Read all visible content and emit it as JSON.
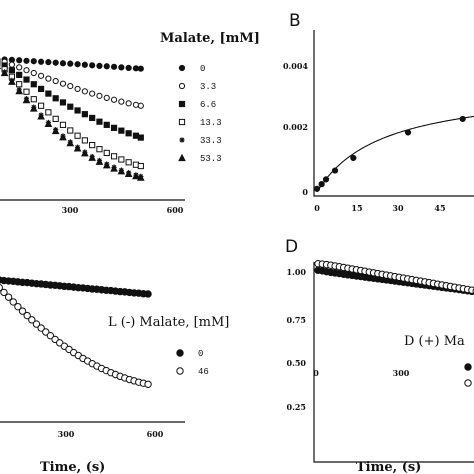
{
  "chart_data": [
    {
      "panel": "",
      "type": "scatter",
      "legend_title": "Malate, [mM]",
      "legend_position": "right",
      "x_ticks": [
        "300",
        "600"
      ],
      "xlim": [
        -100,
        640
      ],
      "ylim": [
        0.3,
        1.08
      ],
      "series": [
        {
          "name": "0",
          "marker": "filled-circle",
          "x": [
            -100,
            -70,
            -40,
            -10,
            20,
            50,
            80,
            110,
            140,
            170,
            200,
            230,
            260,
            290,
            320,
            350,
            380,
            410,
            440,
            470,
            500,
            520
          ],
          "y": [
            1.0,
            0.999,
            0.997,
            0.995,
            0.993,
            0.99,
            0.988,
            0.985,
            0.983,
            0.98,
            0.977,
            0.975,
            0.972,
            0.969,
            0.966,
            0.963,
            0.961,
            0.958,
            0.955,
            0.952,
            0.95,
            0.948
          ]
        },
        {
          "name": "3.3",
          "marker": "open-circle",
          "x": [
            -100,
            -70,
            -40,
            -10,
            20,
            50,
            80,
            110,
            140,
            170,
            200,
            230,
            260,
            290,
            320,
            350,
            380,
            410,
            440,
            470,
            500,
            520
          ],
          "y": [
            1.0,
            0.995,
            0.985,
            0.97,
            0.955,
            0.94,
            0.925,
            0.91,
            0.895,
            0.882,
            0.868,
            0.855,
            0.84,
            0.827,
            0.815,
            0.803,
            0.792,
            0.782,
            0.772,
            0.763,
            0.755,
            0.75
          ]
        },
        {
          "name": "6.6",
          "marker": "filled-square",
          "x": [
            -100,
            -70,
            -40,
            -10,
            20,
            50,
            80,
            110,
            140,
            170,
            200,
            230,
            260,
            290,
            320,
            350,
            380,
            410,
            440,
            470,
            500,
            520
          ],
          "y": [
            0.995,
            0.985,
            0.965,
            0.94,
            0.915,
            0.89,
            0.865,
            0.84,
            0.815,
            0.79,
            0.768,
            0.745,
            0.725,
            0.705,
            0.685,
            0.665,
            0.648,
            0.632,
            0.617,
            0.603,
            0.59,
            0.58
          ]
        },
        {
          "name": "13.3",
          "marker": "open-square",
          "x": [
            -100,
            -70,
            -40,
            -10,
            20,
            50,
            80,
            110,
            140,
            170,
            200,
            230,
            260,
            290,
            320,
            350,
            380,
            410,
            440,
            470,
            500,
            520
          ],
          "y": [
            0.99,
            0.975,
            0.945,
            0.905,
            0.865,
            0.825,
            0.785,
            0.75,
            0.715,
            0.68,
            0.648,
            0.618,
            0.59,
            0.565,
            0.54,
            0.518,
            0.498,
            0.48,
            0.463,
            0.448,
            0.435,
            0.428
          ]
        },
        {
          "name": "33.3",
          "marker": "star",
          "x": [
            -100,
            -70,
            -40,
            -10,
            20,
            50,
            80,
            110,
            140,
            170,
            200,
            230,
            260,
            290,
            320,
            350,
            380,
            410,
            440,
            470,
            500,
            520
          ],
          "y": [
            0.985,
            0.965,
            0.93,
            0.885,
            0.835,
            0.788,
            0.742,
            0.7,
            0.66,
            0.622,
            0.588,
            0.556,
            0.528,
            0.502,
            0.478,
            0.457,
            0.438,
            0.421,
            0.405,
            0.392,
            0.38,
            0.372
          ]
        },
        {
          "name": "53.3",
          "marker": "filled-triangle",
          "x": [
            -100,
            -70,
            -40,
            -10,
            20,
            50,
            80,
            110,
            140,
            170,
            200,
            230,
            260,
            290,
            320,
            350,
            380,
            410,
            440,
            470,
            500,
            520
          ],
          "y": [
            0.985,
            0.962,
            0.925,
            0.878,
            0.828,
            0.78,
            0.735,
            0.693,
            0.653,
            0.615,
            0.582,
            0.55,
            0.522,
            0.496,
            0.472,
            0.451,
            0.432,
            0.415,
            0.4,
            0.386,
            0.374,
            0.366
          ]
        }
      ]
    },
    {
      "panel": "B",
      "type": "line",
      "x_ticks": [
        "0",
        "15",
        "30",
        "45"
      ],
      "y_ticks": [
        "0",
        "0.002",
        "0.004"
      ],
      "xlim": [
        0,
        60
      ],
      "ylim": [
        0,
        0.005
      ],
      "points": {
        "x": [
          0,
          1.7,
          3.3,
          6.6,
          13.3,
          33.3,
          53.3
        ],
        "y": [
          0.0001,
          0.00025,
          0.0004,
          0.00068,
          0.00108,
          0.00189,
          0.00232
        ]
      },
      "fit_line": {
        "Vmax": 0.0034,
        "Km": 24
      }
    },
    {
      "panel": "",
      "type": "scatter",
      "legend_title": "L (-) Malate, [mM]",
      "legend_position": "right",
      "x_ticks": [
        "300",
        "600"
      ],
      "xlabel": "Time, (s)",
      "xlim": [
        -100,
        640
      ],
      "ylim": [
        0.55,
        1.05
      ],
      "series": [
        {
          "name": "0",
          "marker": "filled-circle",
          "x": [
            -100,
            -80,
            -60,
            -40,
            -20,
            0,
            20,
            40,
            60,
            80,
            100,
            120,
            140,
            160,
            180,
            200,
            220,
            240,
            260,
            280,
            300,
            320,
            340,
            360,
            380,
            400,
            420,
            440,
            460,
            480,
            500,
            520,
            540,
            560,
            580
          ],
          "y": [
            1.0,
            0.998,
            0.997,
            0.995,
            0.993,
            0.992,
            0.99,
            0.988,
            0.987,
            0.985,
            0.983,
            0.982,
            0.98,
            0.978,
            0.977,
            0.975,
            0.973,
            0.972,
            0.97,
            0.968,
            0.967,
            0.965,
            0.963,
            0.962,
            0.96,
            0.958,
            0.957,
            0.955,
            0.953,
            0.952,
            0.95,
            0.948,
            0.947,
            0.945,
            0.944
          ]
        },
        {
          "name": "46",
          "marker": "open-circle",
          "x": [
            -100,
            -80,
            -60,
            -40,
            -20,
            0,
            20,
            40,
            60,
            80,
            100,
            120,
            140,
            160,
            180,
            200,
            220,
            240,
            260,
            280,
            300,
            320,
            340,
            360,
            380,
            400,
            420,
            440,
            460,
            480,
            500,
            520,
            540,
            560,
            580
          ],
          "y": [
            1.0,
            0.985,
            0.968,
            0.95,
            0.932,
            0.914,
            0.896,
            0.879,
            0.862,
            0.846,
            0.83,
            0.815,
            0.8,
            0.786,
            0.772,
            0.759,
            0.746,
            0.734,
            0.722,
            0.711,
            0.7,
            0.69,
            0.68,
            0.671,
            0.662,
            0.654,
            0.646,
            0.639,
            0.632,
            0.626,
            0.62,
            0.615,
            0.61,
            0.606,
            0.602
          ]
        }
      ]
    },
    {
      "panel": "D",
      "type": "scatter",
      "legend_title": "D (+) Ma",
      "legend_position": "right",
      "x_ticks": [
        "0",
        "300"
      ],
      "y_ticks": [
        "0.25",
        "0.50",
        "0.75",
        "1.00"
      ],
      "xlabel": "Time, (s)",
      "xlim": [
        0,
        600
      ],
      "ylim": [
        0.2,
        1.05
      ],
      "series": [
        {
          "name": "",
          "marker": "filled-circle",
          "x": [
            0,
            15,
            30,
            45,
            60,
            75,
            90,
            105,
            120,
            135,
            150,
            165,
            180,
            195,
            210,
            225,
            240,
            255,
            270,
            285,
            300,
            315,
            330,
            345,
            360,
            375,
            390,
            405,
            420,
            435,
            450,
            465,
            480,
            495,
            510,
            525,
            540,
            555
          ],
          "y": [
            0.985,
            0.982,
            0.978,
            0.974,
            0.971,
            0.968,
            0.964,
            0.961,
            0.958,
            0.955,
            0.952,
            0.949,
            0.946,
            0.943,
            0.94,
            0.937,
            0.934,
            0.931,
            0.928,
            0.925,
            0.922,
            0.919,
            0.916,
            0.913,
            0.91,
            0.907,
            0.904,
            0.901,
            0.898,
            0.895,
            0.892,
            0.889,
            0.886,
            0.883,
            0.88,
            0.877,
            0.874,
            0.871
          ]
        },
        {
          "name": "",
          "marker": "open-circle",
          "x": [
            0,
            15,
            30,
            45,
            60,
            75,
            90,
            105,
            120,
            135,
            150,
            165,
            180,
            195,
            210,
            225,
            240,
            255,
            270,
            285,
            300,
            315,
            330,
            345,
            360,
            375,
            390,
            405,
            420,
            435,
            450,
            465,
            480,
            495,
            510,
            525,
            540,
            555
          ],
          "y": [
            1.02,
            1.018,
            1.015,
            1.012,
            1.008,
            1.004,
            1.0,
            0.996,
            0.992,
            0.988,
            0.984,
            0.98,
            0.976,
            0.972,
            0.968,
            0.964,
            0.96,
            0.956,
            0.952,
            0.948,
            0.944,
            0.94,
            0.936,
            0.932,
            0.928,
            0.924,
            0.92,
            0.916,
            0.912,
            0.908,
            0.904,
            0.9,
            0.896,
            0.892,
            0.888,
            0.884,
            0.88,
            0.876
          ]
        }
      ]
    }
  ]
}
